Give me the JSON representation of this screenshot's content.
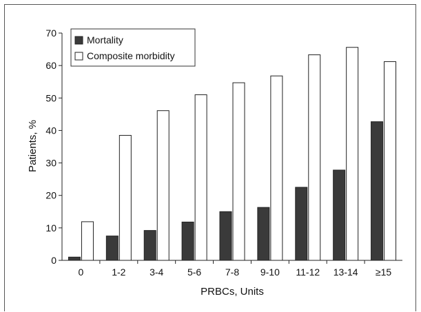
{
  "chart_data": {
    "type": "bar",
    "xlabel": "PRBCs, Units",
    "ylabel": "Patients, %",
    "ylim": [
      0,
      70
    ],
    "yticks": [
      0,
      10,
      20,
      30,
      40,
      50,
      60,
      70
    ],
    "categories": [
      "0",
      "1-2",
      "3-4",
      "5-6",
      "7-8",
      "9-10",
      "11-12",
      "13-14",
      "≥15"
    ],
    "series": [
      {
        "name": "Mortality",
        "color": "#3a3a3a",
        "values": [
          1.0,
          7.5,
          9.2,
          11.8,
          15.0,
          16.3,
          22.5,
          27.8,
          42.7
        ]
      },
      {
        "name": "Composite morbidity",
        "color": "#ffffff",
        "values": [
          11.9,
          38.5,
          46.1,
          51.0,
          54.7,
          56.8,
          63.3,
          65.6,
          61.2
        ]
      }
    ],
    "legend_position": "top-left",
    "grid": false
  }
}
